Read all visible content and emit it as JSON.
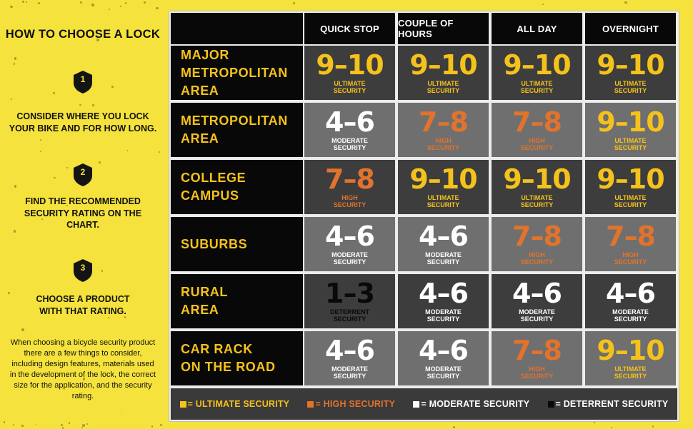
{
  "left_panel": {
    "title": "HOW TO CHOOSE A LOCK",
    "steps": [
      {
        "number": "1",
        "text": "CONSIDER WHERE YOU LOCK YOUR BIKE AND FOR HOW LONG."
      },
      {
        "number": "2",
        "text": "FIND THE RECOMMENDED SECURITY RATING ON THE CHART."
      },
      {
        "number": "3",
        "text": "CHOOSE A PRODUCT WITH THAT RATING."
      }
    ],
    "description": "When choosing a bicycle security product there are a few things to consider, including design features, materials used in the development of the lock, the correct size for the application, and the security rating."
  },
  "colors": {
    "background": "#f5e23c",
    "ultimate": "#f5c21b",
    "high": "#e2732c",
    "moderate": "#ffffff",
    "deterrent": "#0a0a0a",
    "cell_dark": "#3d3d3d",
    "cell_gray": "#6f6f6f",
    "cell_black_bg": "#080808"
  },
  "chart_data": {
    "type": "table",
    "columns": [
      "QUICK STOP",
      "COUPLE OF HOURS",
      "ALL DAY",
      "OVERNIGHT"
    ],
    "rows": [
      {
        "label": [
          "MAJOR",
          "METROPOLITAN",
          "AREA"
        ],
        "bg": "dark",
        "cells": [
          {
            "rating": "9–10",
            "level": "ultimate",
            "label": [
              "ULTIMATE",
              "SECURITY"
            ]
          },
          {
            "rating": "9–10",
            "level": "ultimate",
            "label": [
              "ULTIMATE",
              "SECURITY"
            ]
          },
          {
            "rating": "9–10",
            "level": "ultimate",
            "label": [
              "ULTIMATE",
              "SECURITY"
            ]
          },
          {
            "rating": "9–10",
            "level": "ultimate",
            "label": [
              "ULTIMATE",
              "SECURITY"
            ]
          }
        ]
      },
      {
        "label": [
          "METROPOLITAN",
          "AREA"
        ],
        "bg": "gray",
        "cells": [
          {
            "rating": "4–6",
            "level": "moderate",
            "label": [
              "MODERATE",
              "SECURITY"
            ]
          },
          {
            "rating": "7–8",
            "level": "high",
            "label": [
              "HIGH",
              "SECURITY"
            ]
          },
          {
            "rating": "7–8",
            "level": "high",
            "label": [
              "HIGH",
              "SECURITY"
            ]
          },
          {
            "rating": "9–10",
            "level": "ultimate",
            "label": [
              "ULTIMATE",
              "SECURITY"
            ]
          }
        ]
      },
      {
        "label": [
          "COLLEGE",
          "CAMPUS"
        ],
        "bg": "dark",
        "cells": [
          {
            "rating": "7–8",
            "level": "high",
            "label": [
              "HIGH",
              "SECURITY"
            ]
          },
          {
            "rating": "9–10",
            "level": "ultimate",
            "label": [
              "ULTIMATE",
              "SECURITY"
            ]
          },
          {
            "rating": "9–10",
            "level": "ultimate",
            "label": [
              "ULTIMATE",
              "SECURITY"
            ]
          },
          {
            "rating": "9–10",
            "level": "ultimate",
            "label": [
              "ULTIMATE",
              "SECURITY"
            ]
          }
        ]
      },
      {
        "label": [
          "SUBURBS"
        ],
        "bg": "gray",
        "cells": [
          {
            "rating": "4–6",
            "level": "moderate",
            "label": [
              "MODERATE",
              "SECURITY"
            ]
          },
          {
            "rating": "4–6",
            "level": "moderate",
            "label": [
              "MODERATE",
              "SECURITY"
            ]
          },
          {
            "rating": "7–8",
            "level": "high",
            "label": [
              "HIGH",
              "SECURITY"
            ]
          },
          {
            "rating": "7–8",
            "level": "high",
            "label": [
              "HIGH",
              "SECURITY"
            ]
          }
        ]
      },
      {
        "label": [
          "RURAL",
          "AREA"
        ],
        "bg": "dark",
        "cells": [
          {
            "rating": "1–3",
            "level": "deterrent",
            "label": [
              "DETERRENT",
              "SECURITY"
            ]
          },
          {
            "rating": "4–6",
            "level": "moderate",
            "label": [
              "MODERATE",
              "SECURITY"
            ]
          },
          {
            "rating": "4–6",
            "level": "moderate",
            "label": [
              "MODERATE",
              "SECURITY"
            ]
          },
          {
            "rating": "4–6",
            "level": "moderate",
            "label": [
              "MODERATE",
              "SECURITY"
            ]
          }
        ]
      },
      {
        "label": [
          "CAR RACK",
          "ON THE ROAD"
        ],
        "bg": "gray",
        "cells": [
          {
            "rating": "4–6",
            "level": "moderate",
            "label": [
              "MODERATE",
              "SECURITY"
            ]
          },
          {
            "rating": "4–6",
            "level": "moderate",
            "label": [
              "MODERATE",
              "SECURITY"
            ]
          },
          {
            "rating": "7–8",
            "level": "high",
            "label": [
              "HIGH",
              "SECURITY"
            ]
          },
          {
            "rating": "9–10",
            "level": "ultimate",
            "label": [
              "ULTIMATE",
              "SECURITY"
            ]
          }
        ]
      }
    ],
    "legend": [
      {
        "level": "ultimate",
        "text": "= ULTIMATE SECURITY"
      },
      {
        "level": "high",
        "text": "= HIGH SECURITY"
      },
      {
        "level": "moderate",
        "text": "= MODERATE SECURITY"
      },
      {
        "level": "deterrent",
        "text": "= DETERRENT SECURITY"
      }
    ]
  }
}
